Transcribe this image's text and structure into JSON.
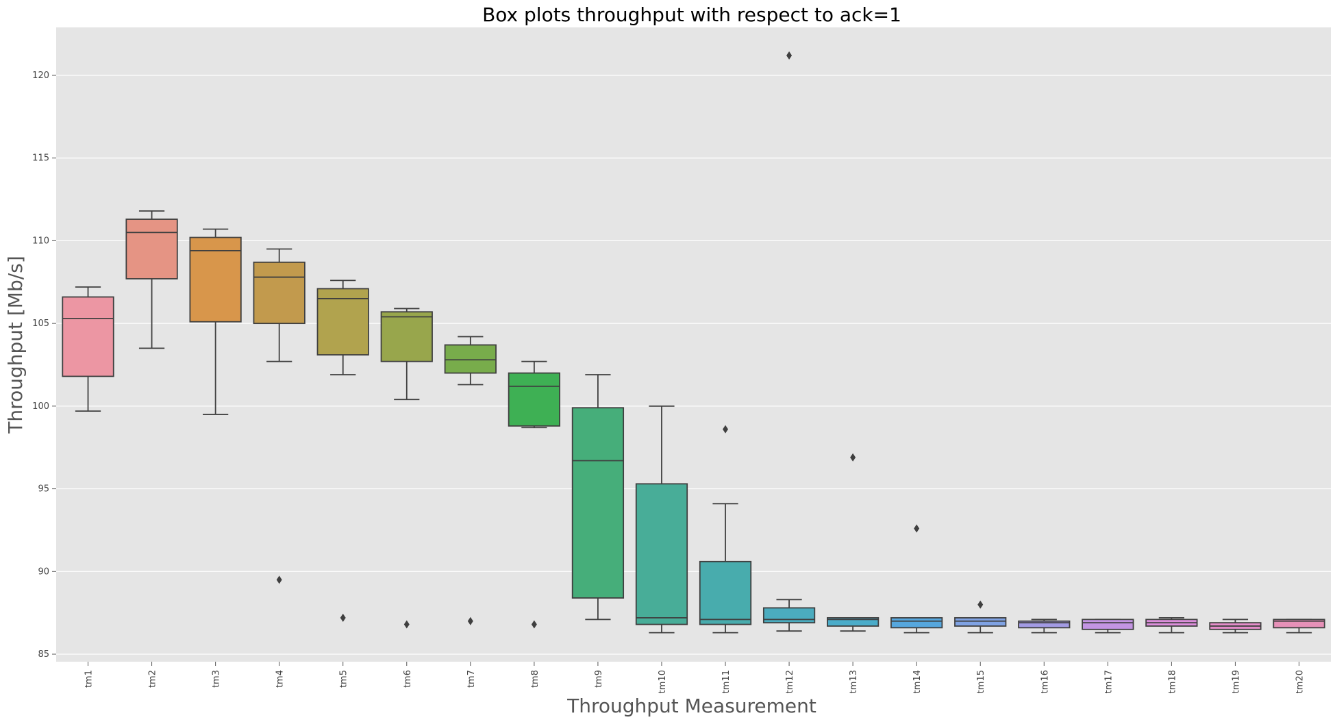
{
  "chart_data": {
    "type": "box",
    "title": "Box plots throughput with respect to ack=1",
    "xlabel": "Throughput Measurement",
    "ylabel": "Throughput [Mb/s]",
    "ylim": [
      84.5,
      123
    ],
    "yticks": [
      85,
      90,
      95,
      100,
      105,
      110,
      115,
      120
    ],
    "grid": true,
    "background": "#e5e5e5",
    "boxes": [
      {
        "label": "tm1",
        "whislo": 99.7,
        "q1": 101.8,
        "med": 105.3,
        "q3": 106.6,
        "whishi": 107.2,
        "fliers": [],
        "color": "#ec96a3"
      },
      {
        "label": "tm2",
        "whislo": 103.5,
        "q1": 107.7,
        "med": 110.5,
        "q3": 111.3,
        "whishi": 111.8,
        "fliers": [],
        "color": "#e59484"
      },
      {
        "label": "tm3",
        "whislo": 99.5,
        "q1": 105.1,
        "med": 109.4,
        "q3": 110.2,
        "whishi": 110.7,
        "fliers": [],
        "color": "#d8964b"
      },
      {
        "label": "tm4",
        "whislo": 102.7,
        "q1": 105.0,
        "med": 107.8,
        "q3": 108.7,
        "whishi": 109.5,
        "fliers": [
          89.5
        ],
        "color": "#c29a4d"
      },
      {
        "label": "tm5",
        "whislo": 101.9,
        "q1": 103.1,
        "med": 106.5,
        "q3": 107.1,
        "whishi": 107.6,
        "fliers": [
          87.2
        ],
        "color": "#b1a34e"
      },
      {
        "label": "tm6",
        "whislo": 100.4,
        "q1": 102.7,
        "med": 105.4,
        "q3": 105.7,
        "whishi": 105.9,
        "fliers": [
          86.8
        ],
        "color": "#98a64c"
      },
      {
        "label": "tm7",
        "whislo": 101.3,
        "q1": 102.0,
        "med": 102.8,
        "q3": 103.7,
        "whishi": 104.2,
        "fliers": [
          87.0
        ],
        "color": "#78ac4b"
      },
      {
        "label": "tm8",
        "whislo": 98.7,
        "q1": 98.8,
        "med": 101.2,
        "q3": 102.0,
        "whishi": 102.7,
        "fliers": [
          86.8
        ],
        "color": "#3eb054"
      },
      {
        "label": "tm9",
        "whislo": 87.1,
        "q1": 88.4,
        "med": 96.7,
        "q3": 99.9,
        "whishi": 101.9,
        "fliers": [],
        "color": "#46ae7a"
      },
      {
        "label": "tm10",
        "whislo": 86.3,
        "q1": 86.8,
        "med": 87.2,
        "q3": 95.3,
        "whishi": 100.0,
        "fliers": [],
        "color": "#48ad98"
      },
      {
        "label": "tm11",
        "whislo": 86.3,
        "q1": 86.8,
        "med": 87.1,
        "q3": 90.6,
        "whishi": 94.1,
        "fliers": [
          98.6
        ],
        "color": "#48acad"
      },
      {
        "label": "tm12",
        "whislo": 86.4,
        "q1": 86.9,
        "med": 87.1,
        "q3": 87.8,
        "whishi": 88.3,
        "fliers": [
          121.2
        ],
        "color": "#4bacbf"
      },
      {
        "label": "tm13",
        "whislo": 86.4,
        "q1": 86.7,
        "med": 87.1,
        "q3": 87.2,
        "whishi": 87.2,
        "fliers": [
          96.9
        ],
        "color": "#4bacc9"
      },
      {
        "label": "tm14",
        "whislo": 86.3,
        "q1": 86.6,
        "med": 87.0,
        "q3": 87.2,
        "whishi": 87.2,
        "fliers": [
          92.6
        ],
        "color": "#56a7de"
      },
      {
        "label": "tm15",
        "whislo": 86.3,
        "q1": 86.7,
        "med": 87.0,
        "q3": 87.2,
        "whishi": 87.2,
        "fliers": [
          88.0
        ],
        "color": "#7fa2e3"
      },
      {
        "label": "tm16",
        "whislo": 86.3,
        "q1": 86.6,
        "med": 86.9,
        "q3": 87.0,
        "whishi": 87.1,
        "fliers": [],
        "color": "#a39be4"
      },
      {
        "label": "tm17",
        "whislo": 86.3,
        "q1": 86.5,
        "med": 86.9,
        "q3": 87.1,
        "whishi": 87.1,
        "fliers": [],
        "color": "#c495e3"
      },
      {
        "label": "tm18",
        "whislo": 86.3,
        "q1": 86.7,
        "med": 86.9,
        "q3": 87.1,
        "whishi": 87.2,
        "fliers": [],
        "color": "#dd8fdc"
      },
      {
        "label": "tm19",
        "whislo": 86.3,
        "q1": 86.5,
        "med": 86.7,
        "q3": 86.9,
        "whishi": 87.1,
        "fliers": [],
        "color": "#e58ecb"
      },
      {
        "label": "tm20",
        "whislo": 86.3,
        "q1": 86.6,
        "med": 87.0,
        "q3": 87.1,
        "whishi": 87.1,
        "fliers": [],
        "color": "#e791b8"
      }
    ]
  }
}
